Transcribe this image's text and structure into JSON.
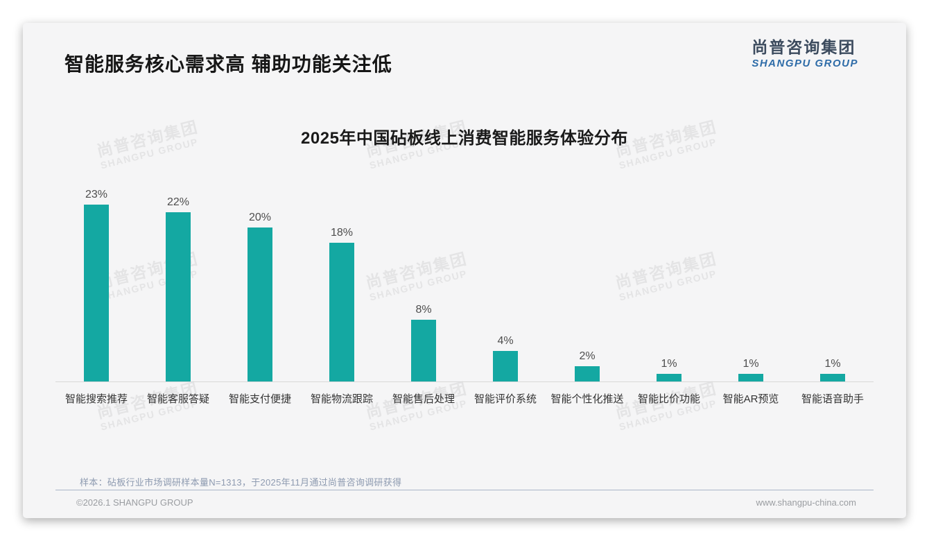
{
  "header": {
    "title": "智能服务核心需求高 辅助功能关注低"
  },
  "logo": {
    "cn": "尚普咨询集团",
    "en": "SHANGPU GROUP"
  },
  "watermark": {
    "line1": "尚普咨询集团",
    "line2": "SHANGPU GROUP"
  },
  "chart_data": {
    "type": "bar",
    "title": "2025年中国砧板线上消费智能服务体验分布",
    "categories": [
      "智能搜索推荐",
      "智能客服答疑",
      "智能支付便捷",
      "智能物流跟踪",
      "智能售后处理",
      "智能评价系统",
      "智能个性化推送",
      "智能比价功能",
      "智能AR预览",
      "智能语音助手"
    ],
    "values": [
      23,
      22,
      20,
      18,
      8,
      4,
      2,
      1,
      1,
      1
    ],
    "value_labels": [
      "23%",
      "22%",
      "20%",
      "18%",
      "8%",
      "4%",
      "2%",
      "1%",
      "1%",
      "1%"
    ],
    "unit": "%",
    "bar_color": "#14A8A2",
    "ylim": [
      0,
      25
    ],
    "grid": false,
    "legend": false,
    "xlabel": "",
    "ylabel": ""
  },
  "footer": {
    "sample_note": "样本：砧板行业市场调研样本量N=1313，于2025年11月通过尚普咨询调研获得",
    "copyright": "©2026.1 SHANGPU GROUP",
    "website": "www.shangpu-china.com"
  }
}
